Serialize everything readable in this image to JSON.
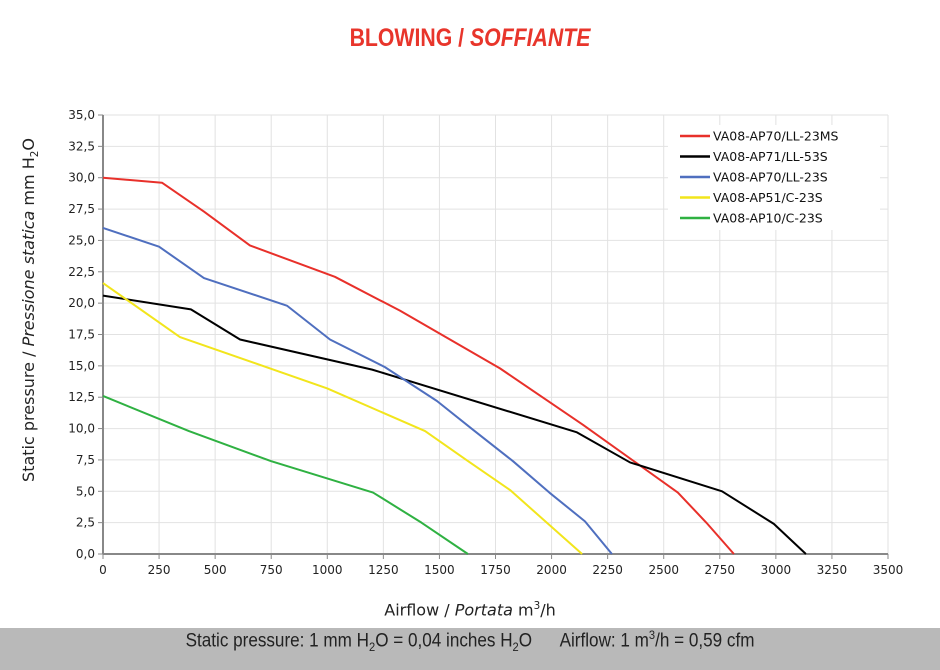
{
  "title_main": "BLOWING / ",
  "title_italic": "SOFFIANTE",
  "footer": {
    "a": "Static pressure: 1 mm H",
    "b": "2",
    "c": "O = 0,04 inches H",
    "d": "2",
    "e": "O      Airflow: 1 m",
    "f": "3",
    "g": "/h = 0,59 cfm"
  },
  "chart_data": {
    "type": "line",
    "xlabel": {
      "main": "Airflow / ",
      "italic": "Portata",
      "unit": " m",
      "sup": "3",
      "unit2": "/h"
    },
    "ylabel": {
      "main": "Static pressure / ",
      "italic": "Pressione statica",
      "unit": " mm  H",
      "sub": "2",
      "unit2": "O"
    },
    "xlim": [
      0,
      3500
    ],
    "ylim": [
      0,
      35
    ],
    "xticks": [
      0,
      250,
      500,
      750,
      1000,
      1250,
      1500,
      1750,
      2000,
      2250,
      2500,
      2750,
      3000,
      3250,
      3500
    ],
    "xtick_labels": [
      "0",
      "250",
      "500",
      "750",
      "1000",
      "1250",
      "1500",
      "1750",
      "2000",
      "2250",
      "2500",
      "2750",
      "3000",
      "3250",
      "3500"
    ],
    "yticks": [
      0,
      2.5,
      5,
      7.5,
      10,
      12.5,
      15,
      17.5,
      20,
      22.5,
      25,
      27.5,
      30,
      32.5,
      35
    ],
    "ytick_labels": [
      "0,0",
      "2,5",
      "5,0",
      "7,5",
      "10,0",
      "12,5",
      "15,0",
      "17,5",
      "20,0",
      "22,5",
      "25,0",
      "27,5",
      "30,0",
      "32,5",
      "35,0"
    ],
    "grid": true,
    "legend_position": "top-right",
    "series": [
      {
        "name": "VA08-AP70/LL-23MS",
        "color": "#e8302a",
        "points": [
          [
            0,
            30.0
          ],
          [
            263,
            29.6
          ],
          [
            450,
            27.3
          ],
          [
            655,
            24.6
          ],
          [
            1034,
            22.1
          ],
          [
            1324,
            19.4
          ],
          [
            1770,
            14.8
          ],
          [
            2000,
            12.0
          ],
          [
            2140,
            10.3
          ],
          [
            2563,
            4.9
          ],
          [
            2690,
            2.5
          ],
          [
            2813,
            0
          ]
        ]
      },
      {
        "name": "VA08-AP71/LL-53S",
        "color": "#000000",
        "points": [
          [
            0,
            20.6
          ],
          [
            392,
            19.5
          ],
          [
            611,
            17.1
          ],
          [
            1200,
            14.7
          ],
          [
            2113,
            9.7
          ],
          [
            2350,
            7.3
          ],
          [
            2760,
            5.0
          ],
          [
            2991,
            2.4
          ],
          [
            3134,
            0
          ]
        ]
      },
      {
        "name": "VA08-AP70/LL-23S",
        "color": "#4f6fbf",
        "points": [
          [
            0,
            26.0
          ],
          [
            250,
            24.5
          ],
          [
            450,
            22.0
          ],
          [
            820,
            19.8
          ],
          [
            1012,
            17.1
          ],
          [
            1257,
            14.9
          ],
          [
            1489,
            12.2
          ],
          [
            1650,
            9.9
          ],
          [
            1828,
            7.4
          ],
          [
            1990,
            4.9
          ],
          [
            2149,
            2.6
          ],
          [
            2269,
            0
          ]
        ]
      },
      {
        "name": "VA08-AP51/C-23S",
        "color": "#f2e51c",
        "points": [
          [
            0,
            21.6
          ],
          [
            343,
            17.3
          ],
          [
            1000,
            13.2
          ],
          [
            1436,
            9.8
          ],
          [
            1620,
            7.5
          ],
          [
            1815,
            5.1
          ],
          [
            2136,
            0
          ]
        ]
      },
      {
        "name": "VA08-AP10/C-23S",
        "color": "#2fb142",
        "points": [
          [
            0,
            12.6
          ],
          [
            383,
            9.8
          ],
          [
            750,
            7.4
          ],
          [
            1204,
            4.9
          ],
          [
            1420,
            2.5
          ],
          [
            1627,
            0
          ]
        ]
      }
    ]
  }
}
